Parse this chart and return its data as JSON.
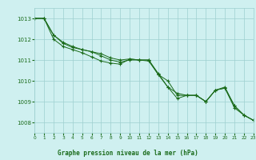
{
  "title": "Graphe pression niveau de la mer (hPa)",
  "bg_color": "#cff0f0",
  "grid_color": "#9ecfcf",
  "line_color": "#1a6b1a",
  "x_min": 0,
  "x_max": 23,
  "y_min": 1007.5,
  "y_max": 1013.5,
  "y_ticks": [
    1008,
    1009,
    1010,
    1011,
    1012,
    1013
  ],
  "x_ticks": [
    0,
    1,
    2,
    3,
    4,
    5,
    6,
    7,
    8,
    9,
    10,
    11,
    12,
    13,
    14,
    15,
    16,
    17,
    18,
    19,
    20,
    21,
    22,
    23
  ],
  "series": [
    [
      1013.0,
      1013.0,
      1012.2,
      1011.8,
      1011.6,
      1011.5,
      1011.4,
      1011.3,
      1011.1,
      1011.0,
      1011.05,
      1011.0,
      1011.0,
      1010.3,
      1009.7,
      1009.4,
      1009.3,
      1009.3,
      1009.0,
      1009.55,
      1009.65,
      1008.8,
      1008.35,
      1008.1
    ],
    [
      1013.0,
      1013.0,
      1012.2,
      1011.85,
      1011.65,
      1011.5,
      1011.4,
      1011.2,
      1011.0,
      1010.9,
      1011.0,
      1011.0,
      1010.95,
      1010.3,
      1010.0,
      1009.3,
      1009.3,
      1009.3,
      1009.0,
      1009.55,
      1009.65,
      1008.7,
      1008.35,
      1008.1
    ],
    [
      1013.0,
      1013.0,
      1012.0,
      1011.65,
      1011.5,
      1011.35,
      1011.15,
      1010.95,
      1010.85,
      1010.8,
      1011.05,
      1011.0,
      1011.0,
      1010.35,
      1009.7,
      1009.15,
      1009.3,
      1009.3,
      1009.0,
      1009.55,
      1009.7,
      1008.8,
      1008.35,
      1008.1
    ]
  ]
}
